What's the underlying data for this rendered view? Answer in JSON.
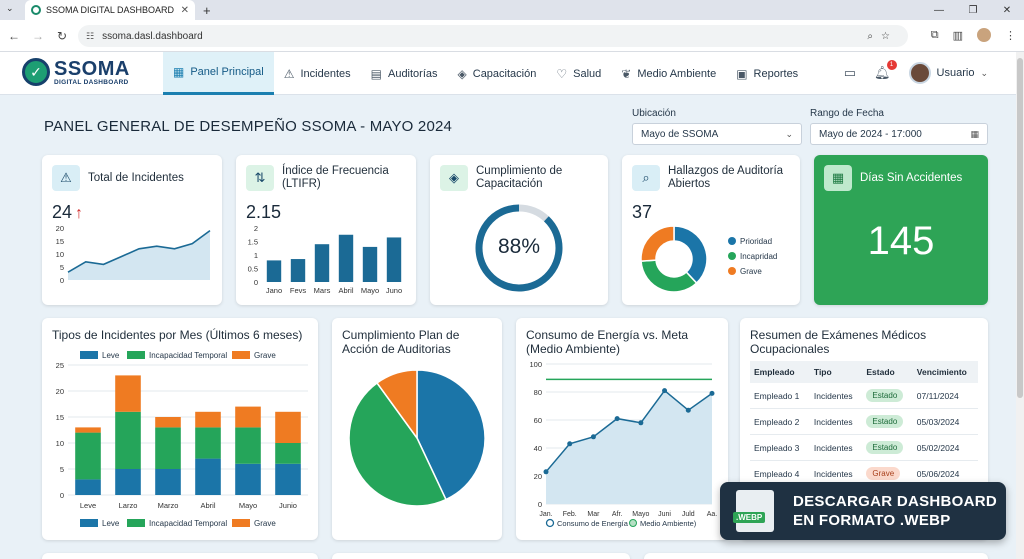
{
  "browser": {
    "tab_title": "SSOMA DIGITAL DASHBOARD",
    "url": "ssoma.dasl.dashboard"
  },
  "app": {
    "logo_main": "SSOMA",
    "logo_sub": "DIGITAL DASHBOARD",
    "user": "Usuario",
    "notifications": "1"
  },
  "nav": [
    {
      "label": "Panel Principal",
      "icon": "grid-icon"
    },
    {
      "label": "Incidentes",
      "icon": "warning-icon"
    },
    {
      "label": "Auditorías",
      "icon": "clipboard-icon"
    },
    {
      "label": "Capacitación",
      "icon": "graduation-cap-icon"
    },
    {
      "label": "Salud",
      "icon": "heart-pulse-icon"
    },
    {
      "label": "Medio Ambiente",
      "icon": "leaf-icon"
    },
    {
      "label": "Reportes",
      "icon": "report-icon"
    }
  ],
  "page": {
    "title": "PANEL GENERAL DE DESEMPEÑO SSOMA - MAYO 2024",
    "location_label": "Ubicación",
    "location_value": "Mayo de SSOMA",
    "date_label": "Rango de Fecha",
    "date_value": "Mayo de 2024 - 17:000"
  },
  "kpis": {
    "incidents": {
      "title": "Total de Incidentes",
      "value": "24",
      "trend": "↑",
      "icon": "warning-icon"
    },
    "ltifr": {
      "title": "Índice de Frecuencia (LTIFR)",
      "value": "2.15",
      "icon": "up-down-arrows-icon"
    },
    "training": {
      "title": "Cumplimiento de Capacitación",
      "value": "88%",
      "icon": "graduation-cap-icon"
    },
    "audit": {
      "title": "Hallazgos de Auditoría Abiertos",
      "value": "37",
      "icon": "magnifier-icon"
    },
    "days": {
      "title": "Días Sin Accidentes",
      "value": "145",
      "icon": "calendar-icon"
    }
  },
  "chart_data": [
    {
      "id": "incidents-trend",
      "type": "area",
      "x": [
        1,
        2,
        3,
        4,
        5,
        6,
        7,
        8,
        9
      ],
      "values": [
        3,
        7,
        6,
        9,
        12,
        13,
        12,
        14,
        19
      ],
      "yticks": [
        "0",
        "5",
        "10",
        "15",
        "20"
      ],
      "ylim": [
        0,
        20
      ]
    },
    {
      "id": "ltifr-bars",
      "type": "bar",
      "categories": [
        "Jano",
        "Fevs",
        "Mars",
        "Abril",
        "Mayo",
        "Juno"
      ],
      "values": [
        0.8,
        0.85,
        1.4,
        1.75,
        1.3,
        1.65
      ],
      "yticks": [
        "0",
        "0.5",
        "1",
        "1.5",
        "2"
      ],
      "ylim": [
        0,
        2
      ]
    },
    {
      "id": "training-ring",
      "type": "pie",
      "values": [
        88,
        12
      ]
    },
    {
      "id": "audit-donut",
      "type": "pie",
      "categories": [
        "Prioridad",
        "Incapridad",
        "Grave"
      ],
      "values": [
        38,
        36,
        26
      ],
      "colors": [
        "#1b75a8",
        "#25a55a",
        "#ef7b22"
      ]
    },
    {
      "id": "incident-types",
      "type": "bar",
      "title": "Tipos de Incidentes por Mes (Últimos 6 meses)",
      "categories": [
        "Leve",
        "Larzo",
        "Marzo",
        "Abril",
        "Mayo",
        "Junio"
      ],
      "series": [
        {
          "name": "Leve",
          "values": [
            3,
            5,
            5,
            7,
            6,
            6
          ],
          "color": "#1b75a8"
        },
        {
          "name": "Incapacidad Temporal",
          "values": [
            9,
            11,
            8,
            6,
            7,
            4
          ],
          "color": "#25a55a"
        },
        {
          "name": "Grave",
          "values": [
            1,
            7,
            2,
            3,
            4,
            6
          ],
          "color": "#ef7b22"
        }
      ],
      "yticks": [
        "0",
        "5",
        "10",
        "15",
        "20",
        "25"
      ],
      "ylim": [
        0,
        25
      ],
      "legend": "top and bottom"
    },
    {
      "id": "audit-plan",
      "type": "pie",
      "title": "Cumplimiento Plan de Acción de Auditorias",
      "values": [
        43,
        47,
        10
      ],
      "colors": [
        "#1b75a8",
        "#25a55a",
        "#ef7b22"
      ]
    },
    {
      "id": "energy",
      "type": "line",
      "title": "Consumo de Energía vs. Meta (Medio Ambiente)",
      "categories": [
        "Jan.",
        "Feb.",
        "Mar",
        "Afr.",
        "Mayo",
        "Juni",
        "Juld",
        "Aa."
      ],
      "series": [
        {
          "name": "Consumo de Energía",
          "values": [
            23,
            43,
            48,
            61,
            58,
            81,
            67,
            79
          ],
          "color": "#1b6a95"
        },
        {
          "name": "Medio Ambiente)",
          "values": [
            89,
            89,
            89,
            89,
            89,
            89,
            89,
            89
          ],
          "color": "#25a55a"
        }
      ],
      "yticks": [
        "0",
        "20",
        "40",
        "60",
        "80",
        "100"
      ],
      "ylim": [
        0,
        100
      ]
    }
  ],
  "medical": {
    "title": "Resumen de Exámenes Médicos Ocupacionales",
    "headers": [
      "Empleado",
      "Tipo",
      "Estado",
      "Vencimiento"
    ],
    "rows": [
      {
        "emp": "Empleado 1",
        "tipo": "Incidentes",
        "estado": "Estado",
        "venc": "07/11/2024"
      },
      {
        "emp": "Empleado 2",
        "tipo": "Incidentes",
        "estado": "Estado",
        "venc": "05/03/2024"
      },
      {
        "emp": "Empleado 3",
        "tipo": "Incidentes",
        "estado": "Estado",
        "venc": "05/02/2024"
      },
      {
        "emp": "Empleado 4",
        "tipo": "Incidentes",
        "estado": "Grave",
        "venc": "05/06/2024"
      }
    ]
  },
  "toast": {
    "line1": "DESCARGAR DASHBOARD",
    "line2": "EN FORMATO .WEBP",
    "file_badge": ".WEBP"
  }
}
